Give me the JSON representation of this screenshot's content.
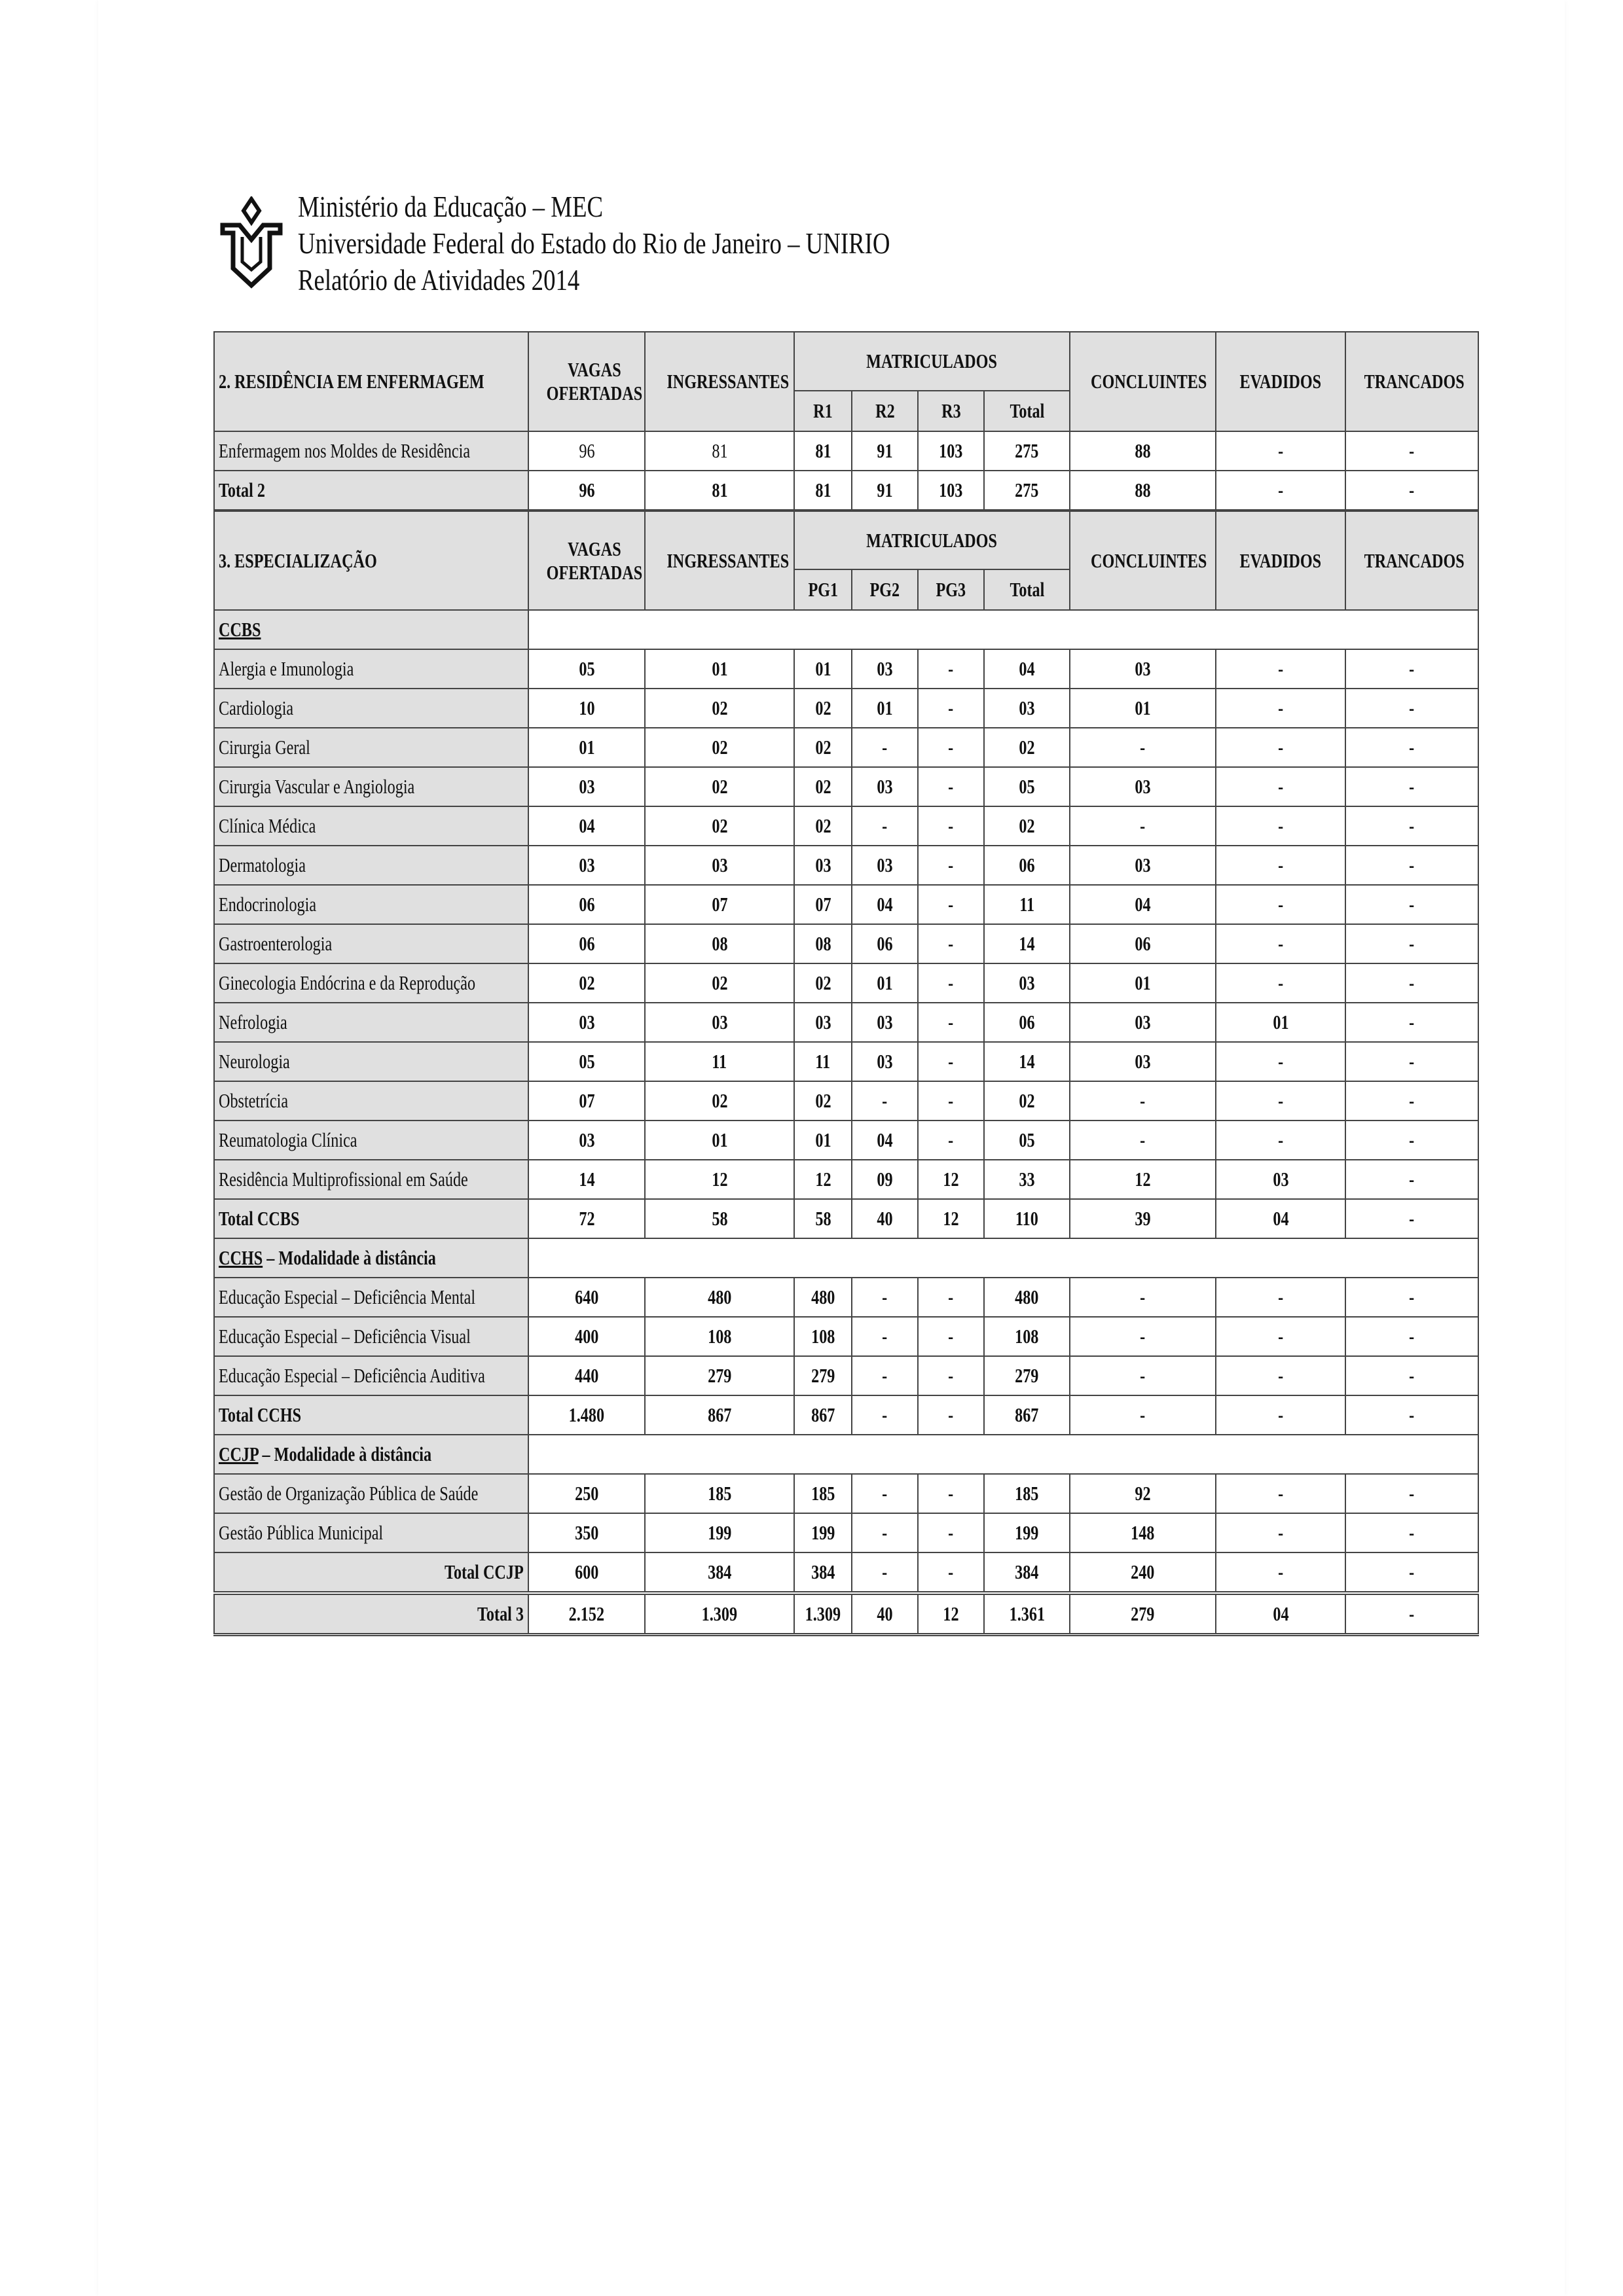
{
  "header": {
    "line1": "Ministério da Educação – MEC",
    "line2": "Universidade Federal do Estado do Rio de Janeiro – UNIRIO",
    "line3": "Relatório de Atividades 2014",
    "logo": "UNIRIO logo"
  },
  "section2": {
    "title": "2. RESIDÊNCIA EM ENFERMAGEM",
    "columns": {
      "vagas": "VAGAS OFERTADAS",
      "ingressantes": "INGRESSANTES",
      "matriculados": "MATRICULADOS",
      "sub": [
        "R1",
        "R2",
        "R3",
        "Total"
      ],
      "concluintes": "CONCLUINTES",
      "evadidos": "EVADIDOS",
      "trancados": "TRANCADOS"
    },
    "rows": [
      {
        "label": "Enfermagem nos Moldes de Residência",
        "values": [
          "96",
          "81",
          "81",
          "91",
          "103",
          "275",
          "88",
          "-",
          "-"
        ]
      },
      {
        "label": "Total 2",
        "total": true,
        "values": [
          "96",
          "81",
          "81",
          "91",
          "103",
          "275",
          "88",
          "-",
          "-"
        ]
      }
    ]
  },
  "section3": {
    "title": "3. ESPECIALIZAÇÃO",
    "columns": {
      "vagas": "VAGAS OFERTADAS",
      "ingressantes": "INGRESSANTES",
      "matriculados": "MATRICULADOS",
      "sub": [
        "PG1",
        "PG2",
        "PG3",
        "Total"
      ],
      "concluintes": "CONCLUINTES",
      "evadidos": "EVADIDOS",
      "trancados": "TRANCADOS"
    },
    "groups": [
      {
        "code": "CCBS",
        "suffix": "",
        "rows": [
          {
            "label": "Alergia e Imunologia",
            "values": [
              "05",
              "01",
              "01",
              "03",
              "-",
              "04",
              "03",
              "-",
              "-"
            ]
          },
          {
            "label": "Cardiologia",
            "values": [
              "10",
              "02",
              "02",
              "01",
              "-",
              "03",
              "01",
              "-",
              "-"
            ]
          },
          {
            "label": "Cirurgia Geral",
            "values": [
              "01",
              "02",
              "02",
              "-",
              "-",
              "02",
              "-",
              "-",
              "-"
            ]
          },
          {
            "label": "Cirurgia Vascular e Angiologia",
            "values": [
              "03",
              "02",
              "02",
              "03",
              "-",
              "05",
              "03",
              "-",
              "-"
            ]
          },
          {
            "label": "Clínica Médica",
            "values": [
              "04",
              "02",
              "02",
              "-",
              "-",
              "02",
              "-",
              "-",
              "-"
            ]
          },
          {
            "label": "Dermatologia",
            "values": [
              "03",
              "03",
              "03",
              "03",
              "-",
              "06",
              "03",
              "-",
              "-"
            ]
          },
          {
            "label": "Endocrinologia",
            "values": [
              "06",
              "07",
              "07",
              "04",
              "-",
              "11",
              "04",
              "-",
              "-"
            ]
          },
          {
            "label": "Gastroenterologia",
            "values": [
              "06",
              "08",
              "08",
              "06",
              "-",
              "14",
              "06",
              "-",
              "-"
            ]
          },
          {
            "label": "Ginecologia Endócrina e da Reprodução",
            "values": [
              "02",
              "02",
              "02",
              "01",
              "-",
              "03",
              "01",
              "-",
              "-"
            ]
          },
          {
            "label": "Nefrologia",
            "values": [
              "03",
              "03",
              "03",
              "03",
              "-",
              "06",
              "03",
              "01",
              "-"
            ]
          },
          {
            "label": "Neurologia",
            "values": [
              "05",
              "11",
              "11",
              "03",
              "-",
              "14",
              "03",
              "-",
              "-"
            ]
          },
          {
            "label": "Obstetrícia",
            "values": [
              "07",
              "02",
              "02",
              "-",
              "-",
              "02",
              "-",
              "-",
              "-"
            ]
          },
          {
            "label": "Reumatologia Clínica",
            "values": [
              "03",
              "01",
              "01",
              "04",
              "-",
              "05",
              "-",
              "-",
              "-"
            ]
          },
          {
            "label": "Residência Multiprofissional em Saúde",
            "values": [
              "14",
              "12",
              "12",
              "09",
              "12",
              "33",
              "12",
              "03",
              "-"
            ]
          },
          {
            "label": "Total CCBS",
            "total": true,
            "values": [
              "72",
              "58",
              "58",
              "40",
              "12",
              "110",
              "39",
              "04",
              "-"
            ]
          }
        ]
      },
      {
        "code": "CCHS",
        "suffix": " – Modalidade à distância",
        "rows": [
          {
            "label": "Educação Especial – Deficiência Mental",
            "values": [
              "640",
              "480",
              "480",
              "-",
              "-",
              "480",
              "-",
              "-",
              "-"
            ]
          },
          {
            "label": "Educação Especial – Deficiência Visual",
            "values": [
              "400",
              "108",
              "108",
              "-",
              "-",
              "108",
              "-",
              "-",
              "-"
            ]
          },
          {
            "label": "Educação Especial – Deficiência Auditiva",
            "values": [
              "440",
              "279",
              "279",
              "-",
              "-",
              "279",
              "-",
              "-",
              "-"
            ]
          },
          {
            "label": "Total CCHS",
            "total": true,
            "values": [
              "1.480",
              "867",
              "867",
              "-",
              "-",
              "867",
              "-",
              "-",
              "-"
            ]
          }
        ]
      },
      {
        "code": "CCJP",
        "suffix": " – Modalidade à distância",
        "rows": [
          {
            "label": "Gestão de Organização Pública de Saúde",
            "values": [
              "250",
              "185",
              "185",
              "-",
              "-",
              "185",
              "92",
              "-",
              "-"
            ]
          },
          {
            "label": "Gestão Pública Municipal",
            "values": [
              "350",
              "199",
              "199",
              "-",
              "-",
              "199",
              "148",
              "-",
              "-"
            ]
          },
          {
            "label": "Total CCJP",
            "total": true,
            "right": true,
            "values": [
              "600",
              "384",
              "384",
              "-",
              "-",
              "384",
              "240",
              "-",
              "-"
            ]
          }
        ]
      }
    ],
    "grand_total": {
      "label": "Total 3",
      "values": [
        "2.152",
        "1.309",
        "1.309",
        "40",
        "12",
        "1.361",
        "279",
        "04",
        "-"
      ]
    }
  }
}
